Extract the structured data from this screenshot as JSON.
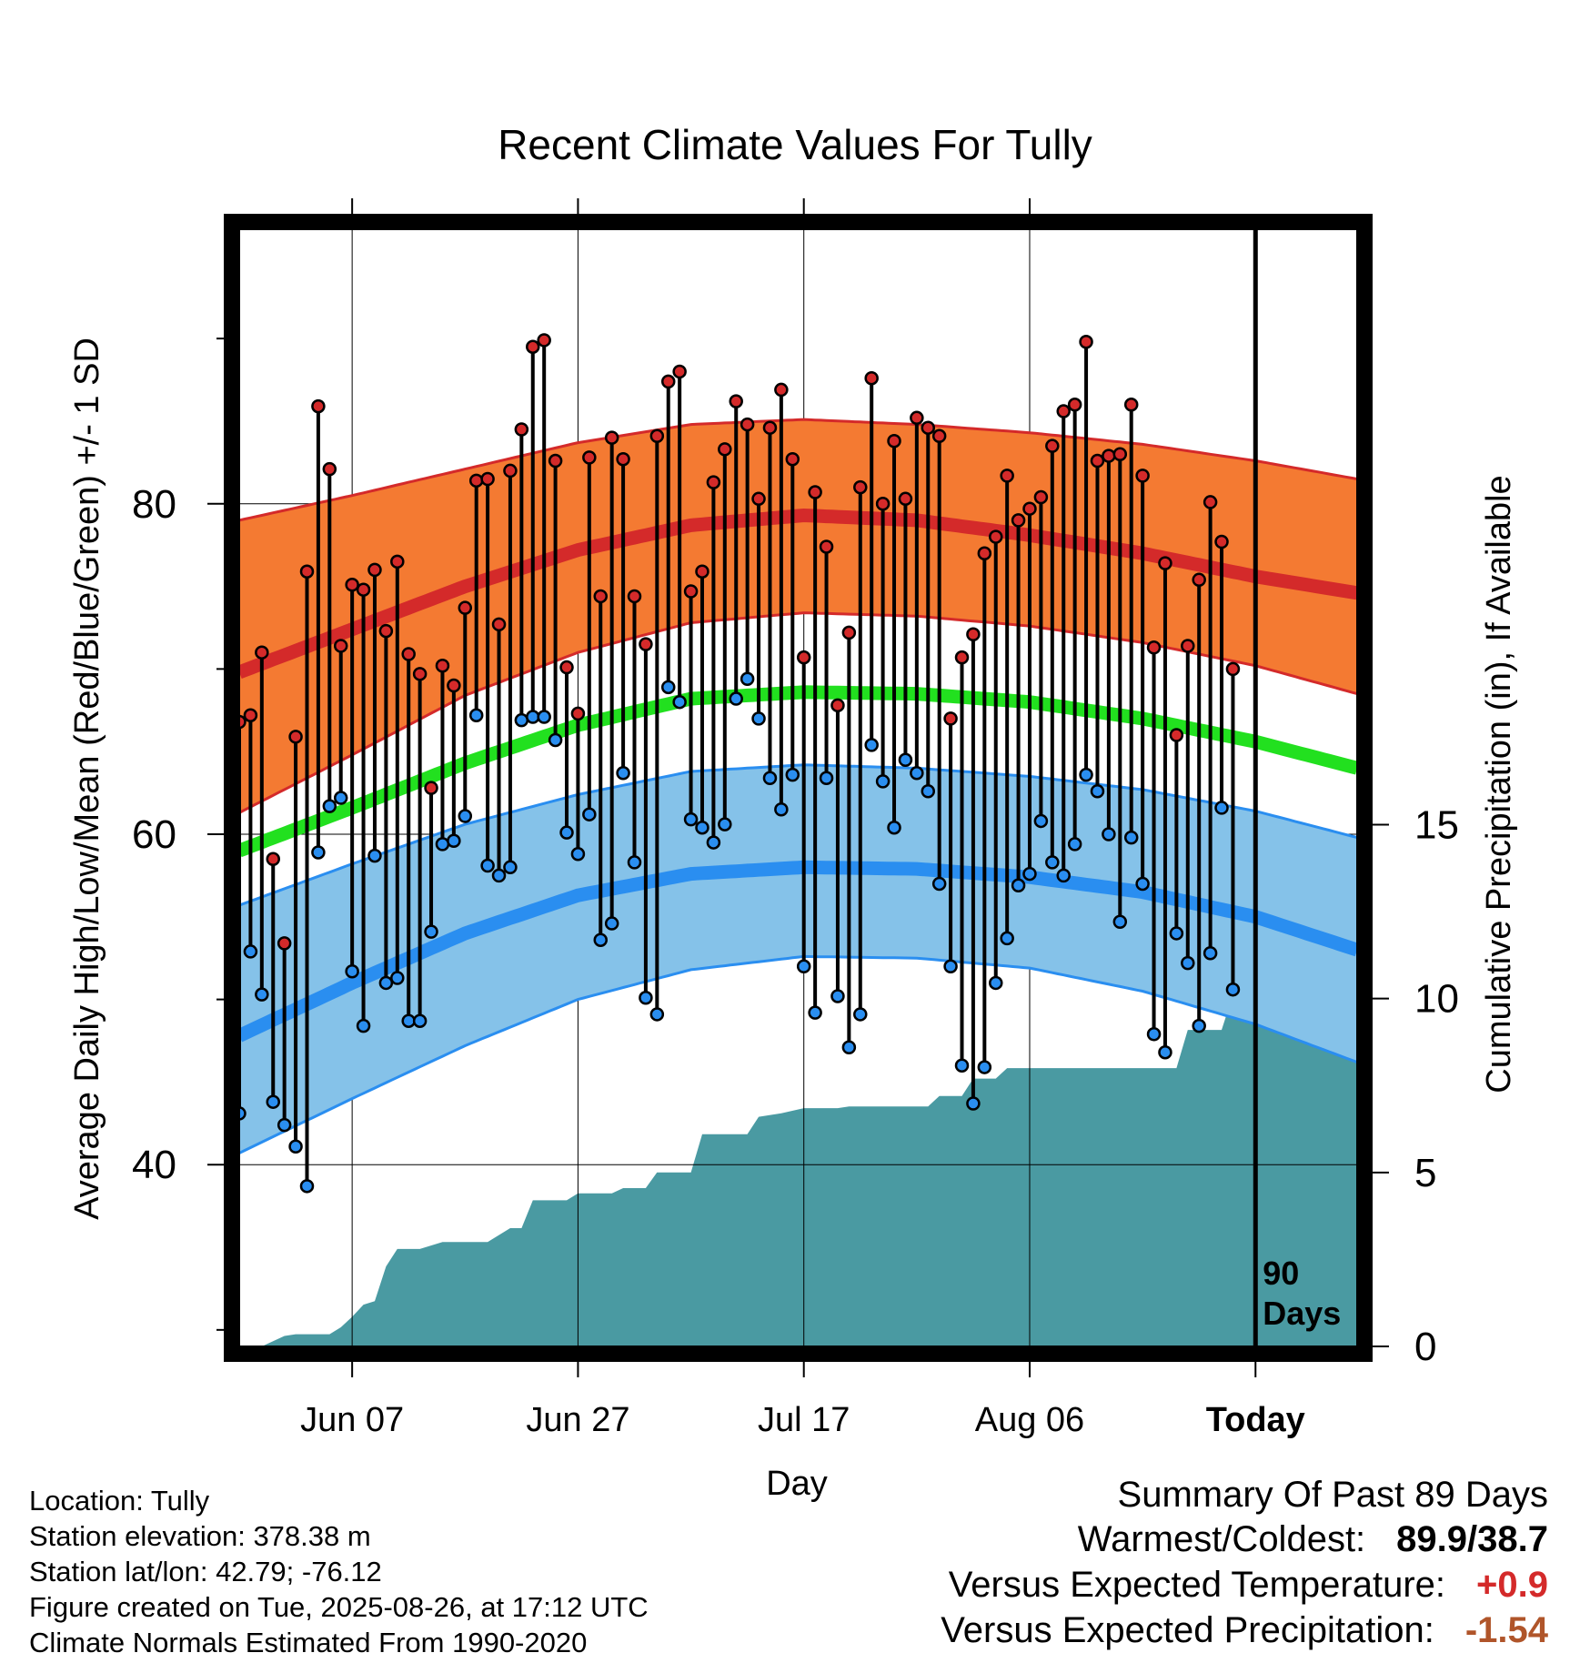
{
  "title": "Recent Climate Values For Tully",
  "ylabel_left": "Average Daily High/Low/Mean (Red/Blue/Green) +/- 1 SD",
  "ylabel_right": "Cumulative Precipitation (in), If Available",
  "xlabel": "Day",
  "today_annotation": [
    "90",
    "Days"
  ],
  "colors": {
    "high_band": "#f47a32",
    "high_line": "#d42a2a",
    "low_band": "#85c2e9",
    "low_line": "#2a8ef0",
    "mean_line": "#22e01f",
    "precip": "#4a9aa2",
    "high_marker": "#d42a2a",
    "low_marker": "#2a8ef0",
    "warm_value": "#d42a2a",
    "precip_value": "#b0552a"
  },
  "meta": {
    "location": "Location: Tully",
    "elevation": "Station elevation: 378.38 m",
    "latlon": "Station lat/lon: 42.79; -76.12",
    "created": "Figure created on Tue, 2025-08-26, at 17:12 UTC",
    "normals": "Climate Normals Estimated From 1990-2020"
  },
  "summary": {
    "heading": "Summary Of Past 89 Days",
    "warm_cold_label": "Warmest/Coldest:",
    "warm_cold_value": "89.9/38.7",
    "temp_label": "Versus Expected Temperature:",
    "temp_value": "+0.9",
    "precip_label": "Versus Expected Precipitation:",
    "precip_value": "-1.54"
  },
  "chart_data": {
    "type": "line",
    "x_axis": {
      "min_day": -90,
      "max_day": 9,
      "ticks": [
        {
          "day": -80,
          "label": "Jun 07"
        },
        {
          "day": -60,
          "label": "Jun 27"
        },
        {
          "day": -40,
          "label": "Jul 17"
        },
        {
          "day": -20,
          "label": "Aug 06"
        },
        {
          "day": 0,
          "label": "Today"
        }
      ]
    },
    "y_left": {
      "min": 29,
      "max": 97,
      "ticks": [
        40,
        60,
        80
      ],
      "minor_ticks": [
        30,
        50,
        70,
        90
      ]
    },
    "y_right": {
      "min": 0,
      "max": 32.3,
      "ticks": [
        0,
        5,
        10,
        15
      ]
    },
    "normal_high_mean": [
      [
        -90,
        69.8
      ],
      [
        -80,
        72.4
      ],
      [
        -70,
        75.0
      ],
      [
        -60,
        77.2
      ],
      [
        -50,
        78.7
      ],
      [
        -40,
        79.3
      ],
      [
        -30,
        79.0
      ],
      [
        -20,
        78.1
      ],
      [
        -10,
        77.0
      ],
      [
        0,
        75.6
      ],
      [
        9,
        74.6
      ]
    ],
    "normal_high_upper": [
      [
        -90,
        79.0
      ],
      [
        -80,
        80.5
      ],
      [
        -70,
        82.1
      ],
      [
        -60,
        83.7
      ],
      [
        -50,
        84.8
      ],
      [
        -40,
        85.1
      ],
      [
        -30,
        84.8
      ],
      [
        -20,
        84.3
      ],
      [
        -10,
        83.6
      ],
      [
        0,
        82.6
      ],
      [
        9,
        81.5
      ]
    ],
    "normal_high_lower": [
      [
        -90,
        61.3
      ],
      [
        -80,
        64.8
      ],
      [
        -70,
        68.4
      ],
      [
        -60,
        71.0
      ],
      [
        -50,
        72.8
      ],
      [
        -40,
        73.4
      ],
      [
        -30,
        73.2
      ],
      [
        -20,
        72.6
      ],
      [
        -10,
        71.6
      ],
      [
        0,
        70.2
      ],
      [
        9,
        68.5
      ]
    ],
    "normal_mean": [
      [
        -90,
        59.0
      ],
      [
        -80,
        61.6
      ],
      [
        -70,
        64.3
      ],
      [
        -60,
        66.6
      ],
      [
        -50,
        68.2
      ],
      [
        -40,
        68.6
      ],
      [
        -30,
        68.5
      ],
      [
        -20,
        68.0
      ],
      [
        -10,
        67.0
      ],
      [
        0,
        65.6
      ],
      [
        9,
        64.0
      ]
    ],
    "normal_low_mean": [
      [
        -90,
        47.8
      ],
      [
        -80,
        51.0
      ],
      [
        -70,
        54.0
      ],
      [
        -60,
        56.3
      ],
      [
        -50,
        57.6
      ],
      [
        -40,
        58.0
      ],
      [
        -30,
        57.9
      ],
      [
        -20,
        57.4
      ],
      [
        -10,
        56.5
      ],
      [
        0,
        55.0
      ],
      [
        9,
        53.0
      ]
    ],
    "normal_low_upper": [
      [
        -90,
        55.7
      ],
      [
        -80,
        58.2
      ],
      [
        -70,
        60.6
      ],
      [
        -60,
        62.4
      ],
      [
        -50,
        63.8
      ],
      [
        -40,
        64.2
      ],
      [
        -30,
        64.0
      ],
      [
        -20,
        63.5
      ],
      [
        -10,
        62.7
      ],
      [
        0,
        61.4
      ],
      [
        9,
        59.8
      ]
    ],
    "normal_low_lower": [
      [
        -90,
        40.7
      ],
      [
        -80,
        44.0
      ],
      [
        -70,
        47.2
      ],
      [
        -60,
        50.0
      ],
      [
        -50,
        51.8
      ],
      [
        -40,
        52.6
      ],
      [
        -30,
        52.5
      ],
      [
        -20,
        51.9
      ],
      [
        -10,
        50.5
      ],
      [
        0,
        48.5
      ],
      [
        9,
        46.2
      ]
    ],
    "daily_high": [
      66.8,
      67.2,
      71.0,
      58.5,
      53.4,
      65.9,
      75.9,
      85.9,
      82.1,
      71.4,
      75.1,
      74.8,
      76.0,
      72.3,
      76.5,
      70.9,
      69.7,
      62.8,
      70.2,
      69.0,
      73.7,
      81.4,
      81.5,
      72.7,
      82.0,
      84.5,
      89.5,
      89.9,
      82.6,
      70.1,
      67.3,
      82.8,
      74.4,
      84.0,
      82.7,
      74.4,
      71.5,
      84.1,
      87.4,
      88.0,
      74.7,
      75.9,
      81.3,
      83.3,
      86.2,
      84.8,
      80.3,
      84.6,
      86.9,
      82.7,
      70.7,
      80.7,
      77.4,
      67.8,
      72.2,
      81.0,
      87.6,
      80.0,
      83.8,
      80.3,
      85.2,
      84.6,
      84.1,
      67.0,
      70.7,
      72.1,
      77.0,
      78.0,
      81.7,
      79.0,
      79.7,
      80.4,
      83.5,
      85.6,
      86.0,
      89.8,
      82.6,
      82.9,
      83.0,
      86.0,
      81.7,
      71.3,
      76.4,
      66.0,
      71.4,
      75.4,
      80.1,
      77.7,
      70.0
    ],
    "daily_low": [
      43.1,
      52.9,
      50.3,
      43.8,
      42.4,
      41.1,
      38.7,
      58.9,
      61.7,
      62.2,
      51.7,
      48.4,
      58.7,
      51.0,
      51.3,
      48.7,
      48.7,
      54.1,
      59.4,
      59.6,
      61.1,
      67.2,
      58.1,
      57.5,
      58.0,
      66.9,
      67.1,
      67.1,
      65.7,
      60.1,
      58.8,
      61.2,
      53.6,
      54.6,
      63.7,
      58.3,
      50.1,
      49.1,
      68.9,
      68.0,
      60.9,
      60.4,
      59.5,
      60.6,
      68.2,
      69.4,
      67.0,
      63.4,
      61.5,
      63.6,
      52.0,
      49.2,
      63.4,
      50.2,
      47.1,
      49.1,
      65.4,
      63.2,
      60.4,
      64.5,
      63.7,
      62.6,
      57.0,
      52.0,
      46.0,
      43.7,
      45.9,
      51.0,
      53.7,
      56.9,
      57.6,
      60.8,
      58.3,
      57.5,
      59.4,
      63.6,
      62.6,
      60.0,
      54.7,
      59.8,
      57.0,
      47.9,
      46.8,
      54.0,
      52.2,
      48.4,
      52.8,
      61.6,
      50.6
    ],
    "cumulative_precip": [
      [
        -90,
        0.0
      ],
      [
        -88,
        0.0
      ],
      [
        -86,
        0.3
      ],
      [
        -85,
        0.35
      ],
      [
        -82,
        0.35
      ],
      [
        -81,
        0.55
      ],
      [
        -80,
        0.85
      ],
      [
        -79,
        1.2
      ],
      [
        -78,
        1.3
      ],
      [
        -77,
        2.3
      ],
      [
        -76,
        2.8
      ],
      [
        -74,
        2.8
      ],
      [
        -72,
        3.0
      ],
      [
        -68,
        3.0
      ],
      [
        -67,
        3.2
      ],
      [
        -66,
        3.4
      ],
      [
        -65,
        3.4
      ],
      [
        -64,
        4.2
      ],
      [
        -61,
        4.2
      ],
      [
        -60,
        4.4
      ],
      [
        -57,
        4.4
      ],
      [
        -56,
        4.55
      ],
      [
        -54,
        4.55
      ],
      [
        -53,
        5.0
      ],
      [
        -50,
        5.0
      ],
      [
        -49,
        6.1
      ],
      [
        -45,
        6.1
      ],
      [
        -44,
        6.6
      ],
      [
        -42,
        6.7
      ],
      [
        -40,
        6.85
      ],
      [
        -37,
        6.85
      ],
      [
        -36,
        6.9
      ],
      [
        -29,
        6.9
      ],
      [
        -28,
        7.2
      ],
      [
        -26,
        7.2
      ],
      [
        -25,
        7.7
      ],
      [
        -23,
        7.7
      ],
      [
        -22,
        8.0
      ],
      [
        -7,
        8.0
      ],
      [
        -6,
        9.1
      ],
      [
        -3,
        9.1
      ],
      [
        -2,
        10.1
      ],
      [
        -1,
        10.4
      ],
      [
        0,
        10.4
      ],
      [
        9,
        10.4
      ]
    ]
  }
}
